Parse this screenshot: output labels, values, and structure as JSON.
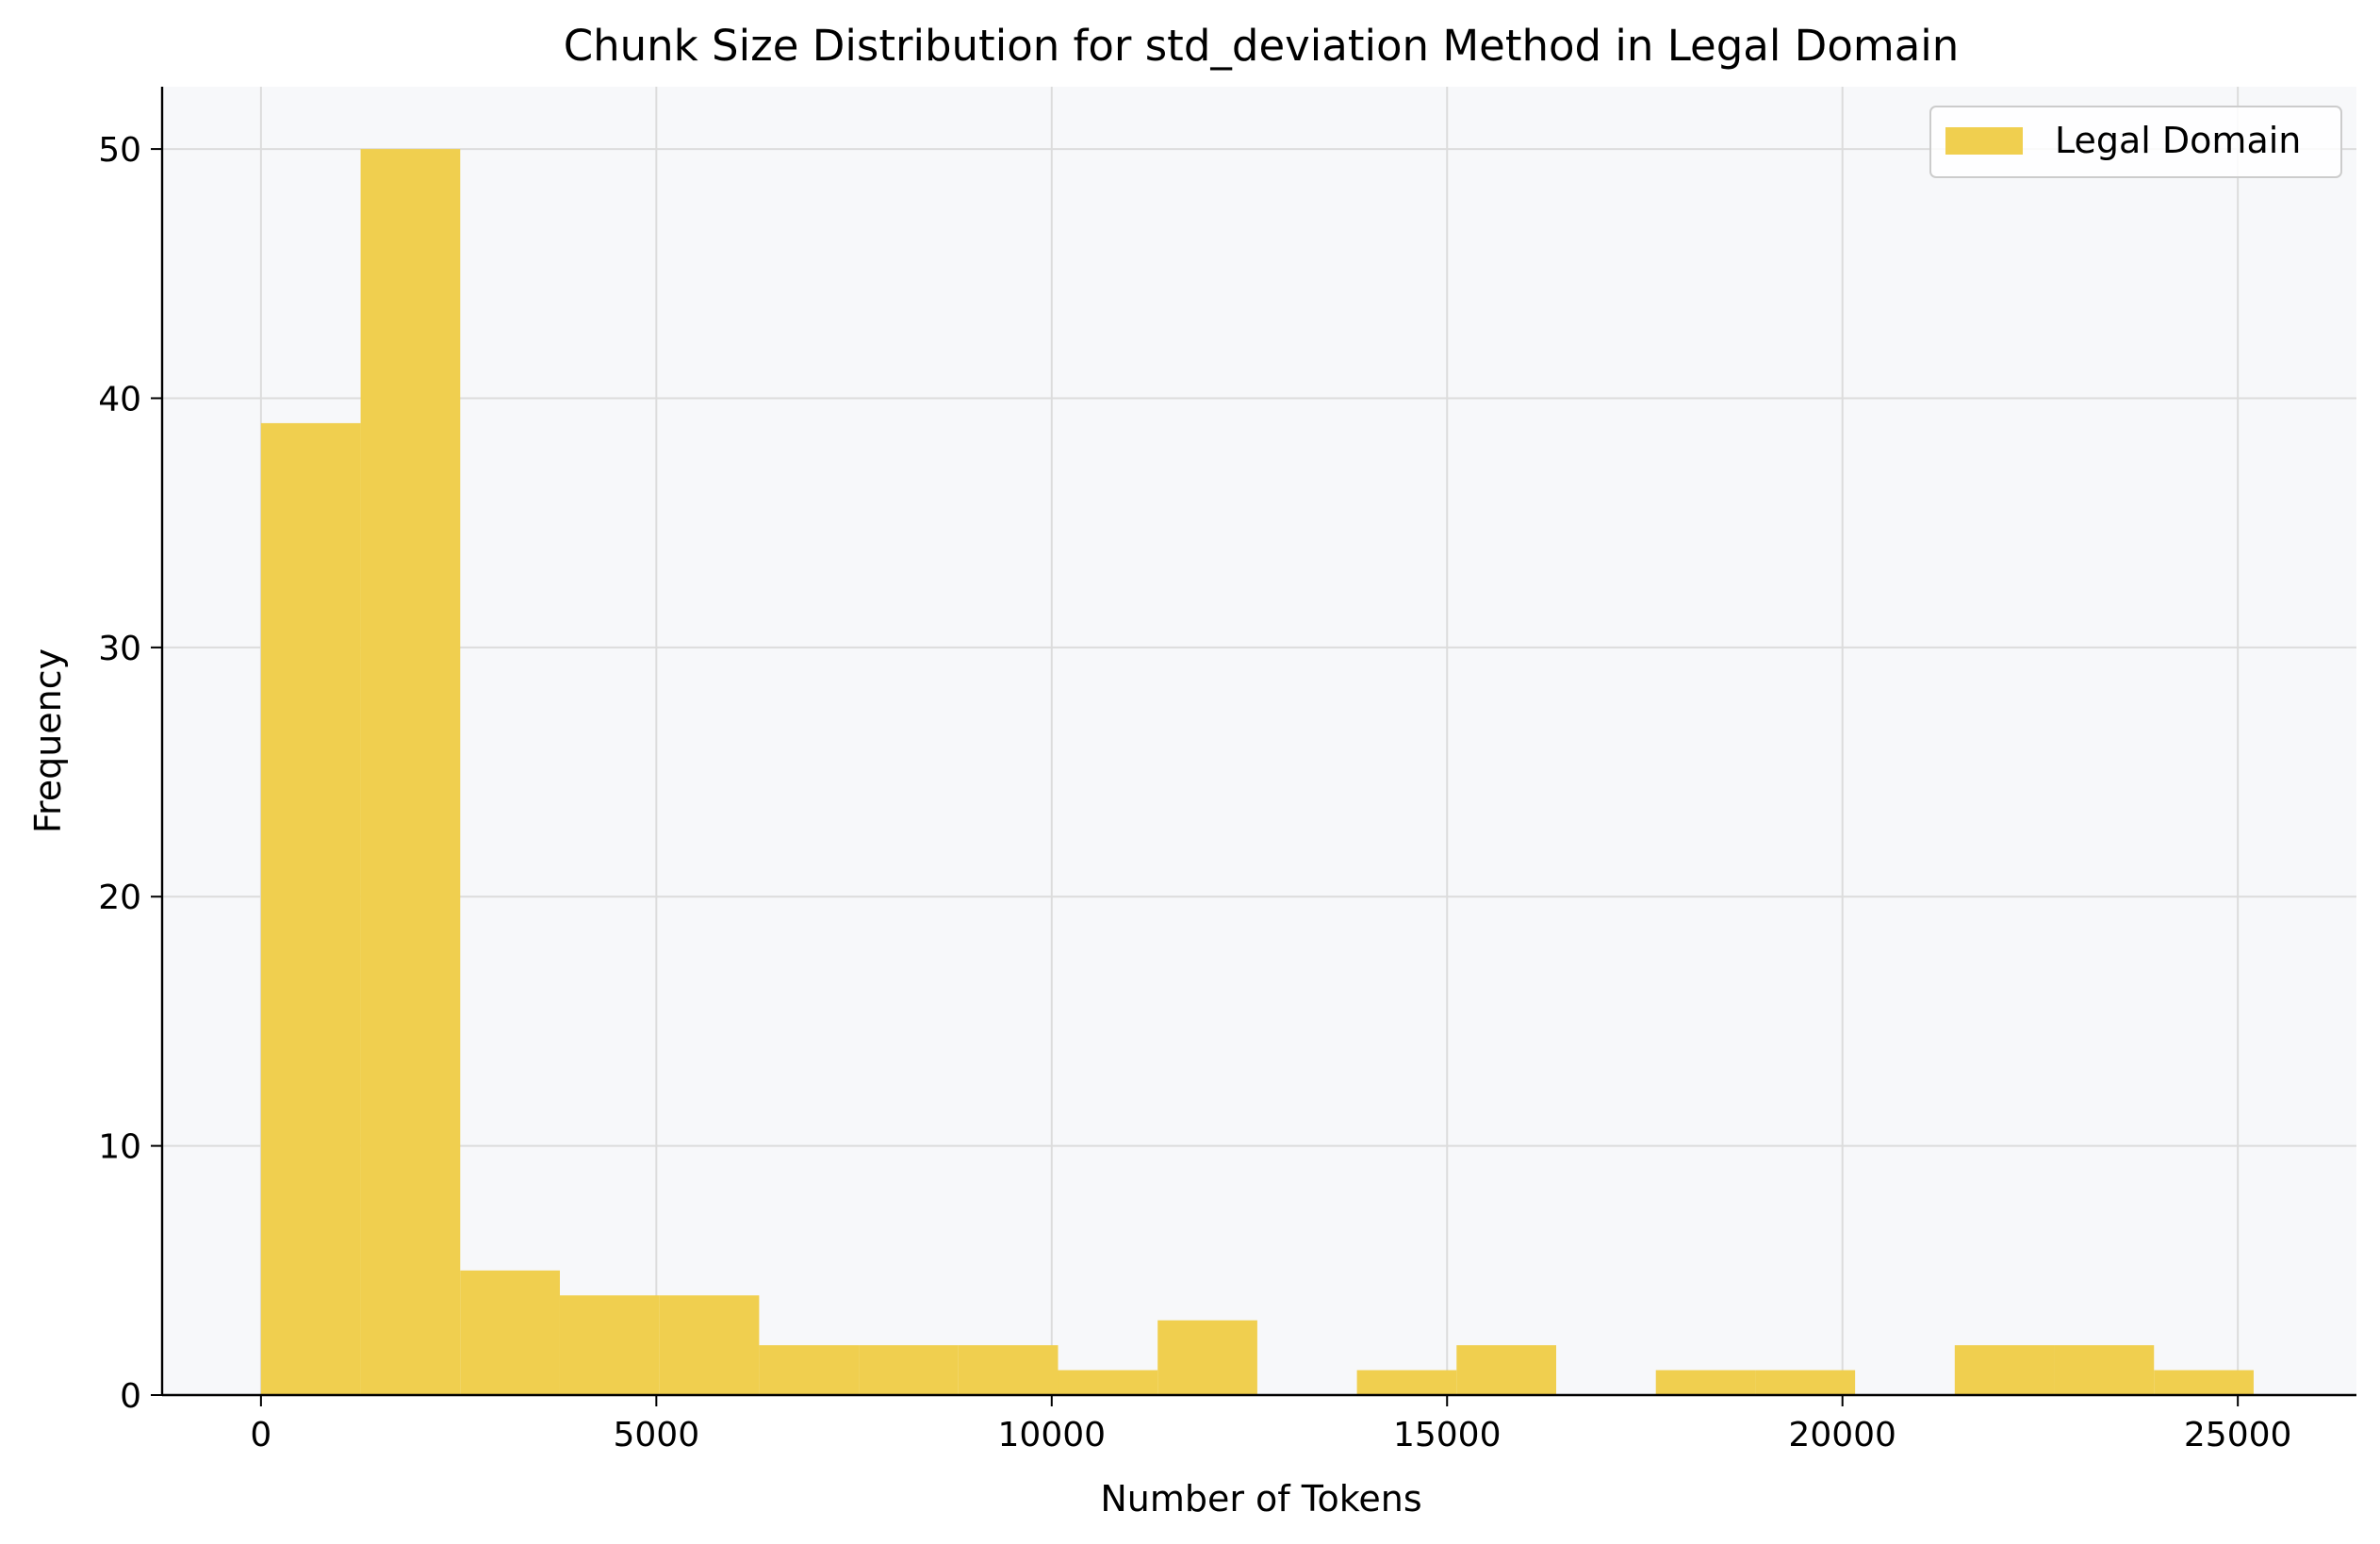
{
  "chart_data": {
    "type": "bar",
    "title": "Chunk Size Distribution for std_deviation Method in Legal Domain",
    "xlabel": "Number of Tokens",
    "ylabel": "Frequency",
    "xlim": [
      -1250,
      26500
    ],
    "ylim": [
      0,
      52.5
    ],
    "xticks": [
      0,
      5000,
      10000,
      15000,
      20000,
      25000
    ],
    "yticks": [
      0,
      10,
      20,
      30,
      40,
      50
    ],
    "grid": true,
    "legend_position": "top-right",
    "bar_color": "#f0cf4f",
    "series": [
      {
        "name": "Legal Domain",
        "bin_edges": [
          0,
          1260,
          2520,
          3780,
          5040,
          6300,
          7560,
          8820,
          10080,
          11340,
          12600,
          13860,
          15120,
          16380,
          17640,
          18900,
          20160,
          21420,
          22680,
          23940,
          25200
        ],
        "values": [
          39,
          50,
          5,
          4,
          4,
          2,
          2,
          2,
          1,
          3,
          0,
          1,
          2,
          0,
          1,
          1,
          0,
          2,
          2,
          1
        ]
      }
    ]
  }
}
